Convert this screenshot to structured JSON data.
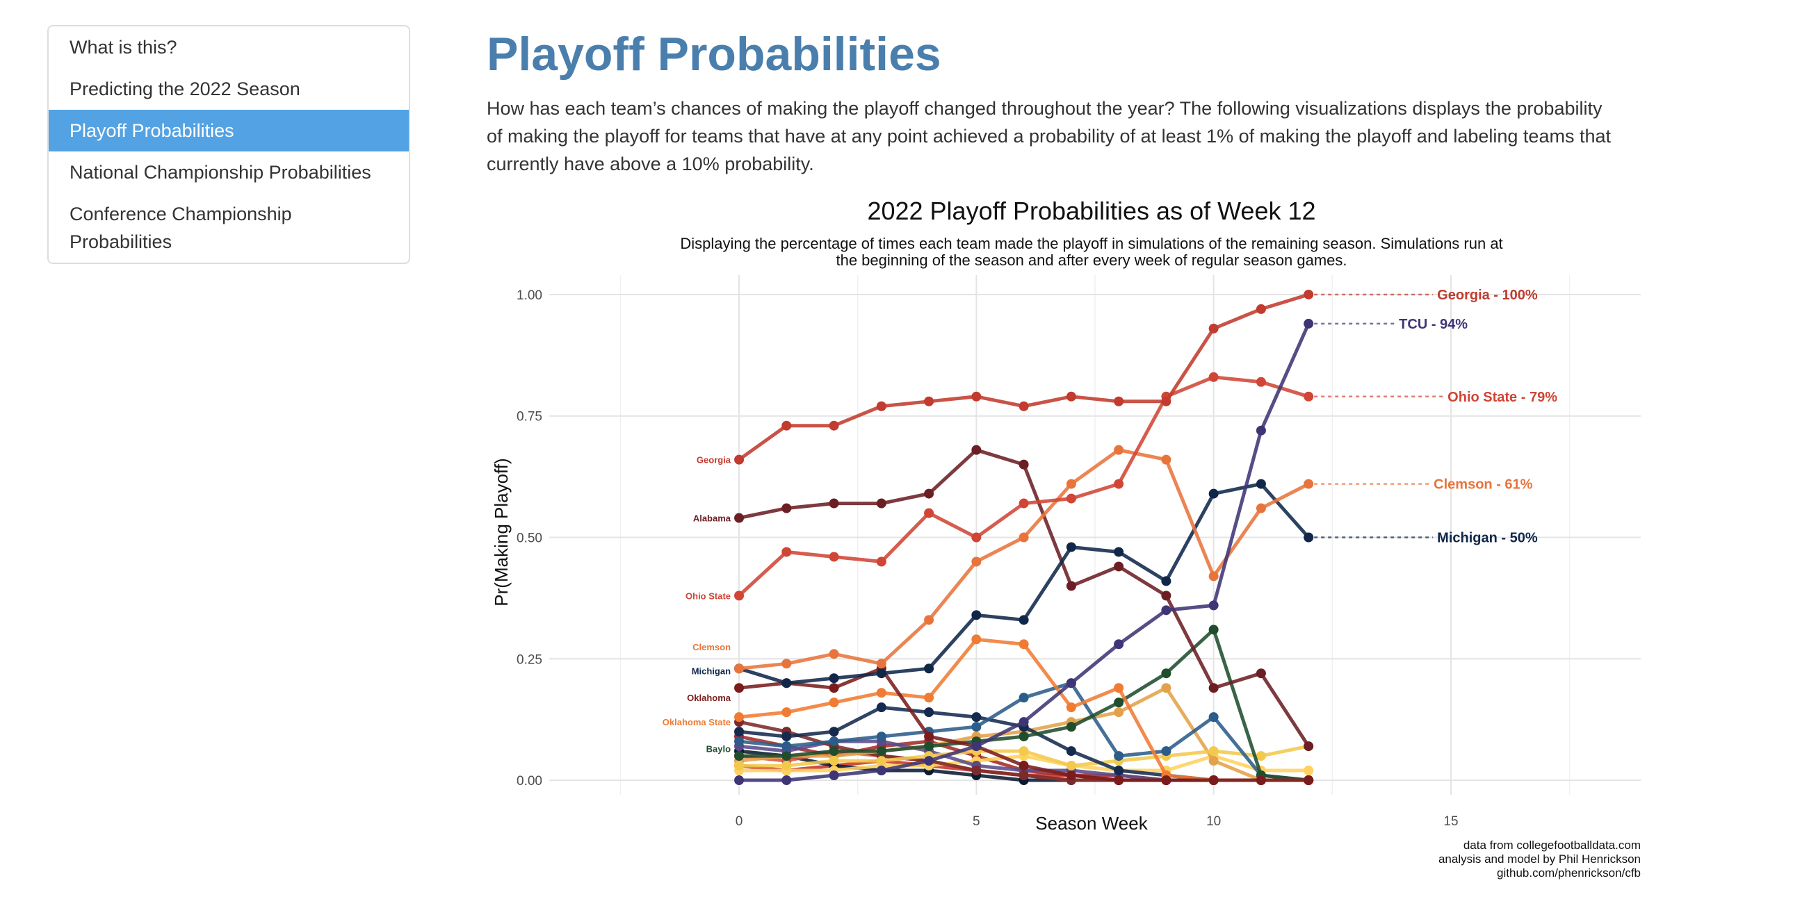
{
  "toc": {
    "items": [
      {
        "label": "What is this?",
        "active": false
      },
      {
        "label": "Predicting the 2022 Season",
        "active": false
      },
      {
        "label": "Playoff Probabilities",
        "active": true
      },
      {
        "label": "National Championship Probabilities",
        "active": false
      },
      {
        "label": "Conference Championship Probabilities",
        "active": false
      }
    ]
  },
  "page": {
    "title": "Playoff Probabilities",
    "intro": "How has each team’s chances of making the playoff changed throughout the year? The following visualizations displays the probability of making the playoff for teams that have at any point achieved a probability of at least 1% of making the playoff and labeling teams that currently have above a 10% probability."
  },
  "chart_data": {
    "type": "line",
    "title": "2022 Playoff Probabilities as of Week 12",
    "subtitle": "Displaying the percentage of times each team made the playoff in simulations of the remaining season. Simulations run at the beginning of the season and after every week of regular season games.",
    "xlabel": "Season Week",
    "ylabel": "Pr(Making Playoff)",
    "xlim": [
      -4,
      19
    ],
    "ylim": [
      -0.03,
      1.04
    ],
    "x_ticks": [
      0,
      5,
      10,
      15
    ],
    "y_ticks": [
      0.0,
      0.25,
      0.5,
      0.75,
      1.0
    ],
    "y_tick_labels": [
      "0.00",
      "0.25",
      "0.50",
      "0.75",
      "1.00"
    ],
    "grid": true,
    "caption": [
      "data from collegefootballdata.com",
      "analysis and model by Phil Henrickson",
      "github.com/phenrickson/cfb"
    ],
    "x": [
      0,
      1,
      2,
      3,
      4,
      5,
      6,
      7,
      8,
      9,
      10,
      11,
      12
    ],
    "series": [
      {
        "name": "Georgia",
        "color": "#c23b2e",
        "end_label": "Georgia - 100%",
        "values": [
          0.66,
          0.73,
          0.73,
          0.77,
          0.78,
          0.79,
          0.77,
          0.79,
          0.78,
          0.78,
          0.93,
          0.97,
          1.0
        ]
      },
      {
        "name": "TCU",
        "color": "#3e3575",
        "end_label": "TCU - 94%",
        "values": [
          0.0,
          0.0,
          0.01,
          0.02,
          0.04,
          0.07,
          0.12,
          0.2,
          0.28,
          0.35,
          0.36,
          0.72,
          0.94
        ]
      },
      {
        "name": "Ohio State",
        "color": "#d04535",
        "end_label": "Ohio State - 79%",
        "values": [
          0.38,
          0.47,
          0.46,
          0.45,
          0.55,
          0.5,
          0.57,
          0.58,
          0.61,
          0.79,
          0.83,
          0.82,
          0.79
        ]
      },
      {
        "name": "Clemson",
        "color": "#e8743b",
        "end_label": "Clemson - 61%",
        "values": [
          0.23,
          0.24,
          0.26,
          0.24,
          0.33,
          0.45,
          0.5,
          0.61,
          0.68,
          0.66,
          0.42,
          0.56,
          0.61
        ]
      },
      {
        "name": "Michigan",
        "color": "#10274a",
        "end_label": "Michigan - 50%",
        "values": [
          0.23,
          0.2,
          0.21,
          0.22,
          0.23,
          0.34,
          0.33,
          0.48,
          0.47,
          0.41,
          0.59,
          0.61,
          0.5
        ]
      },
      {
        "name": "Alabama",
        "color": "#6b1f24",
        "end_label": "",
        "values": [
          0.54,
          0.56,
          0.57,
          0.57,
          0.59,
          0.68,
          0.65,
          0.4,
          0.44,
          0.38,
          0.19,
          0.22,
          0.07
        ]
      },
      {
        "name": "Oklahoma",
        "color": "#7a1c1c",
        "end_label": "",
        "values": [
          0.19,
          0.2,
          0.19,
          0.23,
          0.09,
          0.07,
          0.03,
          0.01,
          0.0,
          0.0,
          0.0,
          0.0,
          0.0
        ]
      },
      {
        "name": "Oklahoma State",
        "color": "#f07b33",
        "end_label": "",
        "values": [
          0.13,
          0.14,
          0.16,
          0.18,
          0.17,
          0.29,
          0.28,
          0.15,
          0.19,
          0.01,
          0.0,
          0.0,
          0.0
        ]
      },
      {
        "name": "Baylor",
        "color": "#1f4d2e",
        "end_label": "",
        "values": [
          0.05,
          0.05,
          0.06,
          0.06,
          0.07,
          0.08,
          0.09,
          0.11,
          0.16,
          0.22,
          0.31,
          0.01,
          0.0
        ]
      },
      {
        "name": "",
        "color": "#2b5c8a",
        "end_label": "",
        "values": [
          0.08,
          0.07,
          0.08,
          0.09,
          0.1,
          0.11,
          0.17,
          0.2,
          0.05,
          0.06,
          0.13,
          0.01,
          0.0
        ]
      },
      {
        "name": "",
        "color": "#152a4e",
        "end_label": "",
        "values": [
          0.1,
          0.09,
          0.1,
          0.15,
          0.14,
          0.13,
          0.11,
          0.06,
          0.02,
          0.01,
          0.0,
          0.0,
          0.0
        ]
      },
      {
        "name": "",
        "color": "#f2c94c",
        "end_label": "",
        "values": [
          0.03,
          0.03,
          0.04,
          0.04,
          0.05,
          0.06,
          0.06,
          0.03,
          0.04,
          0.05,
          0.06,
          0.05,
          0.07
        ]
      },
      {
        "name": "",
        "color": "#e2a24b",
        "end_label": "",
        "values": [
          0.04,
          0.05,
          0.05,
          0.06,
          0.07,
          0.09,
          0.1,
          0.12,
          0.14,
          0.19,
          0.04,
          0.0,
          0.0
        ]
      },
      {
        "name": "",
        "color": "#7b2b2b",
        "end_label": "",
        "values": [
          0.12,
          0.1,
          0.07,
          0.05,
          0.04,
          0.02,
          0.01,
          0.0,
          0.0,
          0.0,
          0.0,
          0.0,
          0.0
        ]
      },
      {
        "name": "",
        "color": "#5a4a8a",
        "end_label": "",
        "values": [
          0.07,
          0.06,
          0.08,
          0.08,
          0.06,
          0.03,
          0.02,
          0.02,
          0.01,
          0.0,
          0.0,
          0.0,
          0.0
        ]
      },
      {
        "name": "",
        "color": "#ffd15e",
        "end_label": "",
        "values": [
          0.02,
          0.02,
          0.02,
          0.03,
          0.03,
          0.04,
          0.05,
          0.03,
          0.02,
          0.02,
          0.05,
          0.02,
          0.02
        ]
      },
      {
        "name": "",
        "color": "#a52a2a",
        "end_label": "",
        "values": [
          0.09,
          0.07,
          0.05,
          0.07,
          0.08,
          0.05,
          0.02,
          0.01,
          0.01,
          0.0,
          0.0,
          0.0,
          0.0
        ]
      },
      {
        "name": "",
        "color": "#d35a3a",
        "end_label": "",
        "values": [
          0.05,
          0.04,
          0.06,
          0.05,
          0.04,
          0.02,
          0.01,
          0.0,
          0.0,
          0.0,
          0.0,
          0.0,
          0.0
        ]
      },
      {
        "name": "",
        "color": "#0b1a33",
        "end_label": "",
        "values": [
          0.06,
          0.05,
          0.03,
          0.02,
          0.02,
          0.01,
          0.0,
          0.0,
          0.0,
          0.0,
          0.0,
          0.0,
          0.0
        ]
      },
      {
        "name": "",
        "color": "#c8342a",
        "end_label": "",
        "values": [
          0.03,
          0.02,
          0.03,
          0.04,
          0.03,
          0.02,
          0.01,
          0.01,
          0.0,
          0.0,
          0.0,
          0.0,
          0.0
        ]
      }
    ],
    "start_labels": [
      {
        "text": "Georgia",
        "color": "#c23b2e",
        "y": 0.66
      },
      {
        "text": "Alabama",
        "color": "#6b1f24",
        "y": 0.54
      },
      {
        "text": "Ohio State",
        "color": "#d04535",
        "y": 0.38
      },
      {
        "text": "Clemson",
        "color": "#e8743b",
        "y": 0.275
      },
      {
        "text": "Michigan",
        "color": "#10274a",
        "y": 0.225
      },
      {
        "text": "Oklahoma",
        "color": "#7a1c1c",
        "y": 0.17
      },
      {
        "text": "Oklahoma State",
        "color": "#f07b33",
        "y": 0.12
      },
      {
        "text": "Baylo",
        "color": "#1f4d2e",
        "y": 0.065
      }
    ]
  }
}
